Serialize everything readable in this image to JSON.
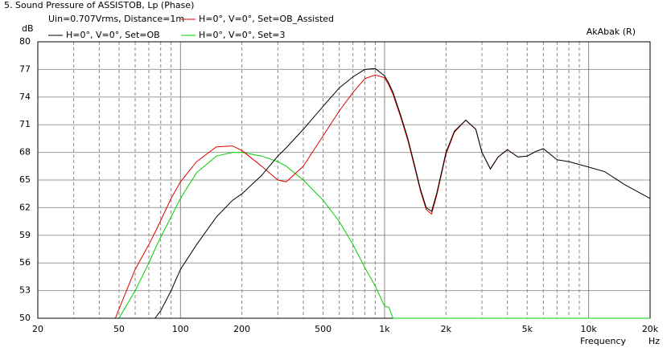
{
  "chart_data": {
    "type": "line",
    "title": "5. Sound Pressure of ASSISTOB, Lp (Phase)",
    "subtitle": "Uin=0.707Vrms, Distance=1m",
    "watermark": "AkAbak (R)",
    "y_label": "dB",
    "x_label": "Frequency",
    "x_unit": "Hz",
    "x_log": true,
    "grid": true,
    "x": [
      20,
      48,
      50,
      60,
      70,
      75,
      80,
      90,
      100,
      120,
      150,
      180,
      200,
      250,
      300,
      330,
      400,
      500,
      600,
      700,
      800,
      900,
      1000,
      1050,
      1100,
      1200,
      1300,
      1400,
      1500,
      1600,
      1700,
      1800,
      2000,
      2200,
      2500,
      2800,
      3000,
      3300,
      3600,
      4000,
      4500,
      5000,
      5500,
      6000,
      7000,
      8000,
      10000,
      12000,
      15000,
      20000
    ],
    "series": [
      {
        "name": "H=0°, V=0°, Set=OB",
        "color": "#000000",
        "values": [
          50,
          50,
          50,
          50,
          50,
          50,
          50.8,
          53,
          55.3,
          58,
          61,
          62.8,
          63.5,
          65.5,
          67.6,
          68.5,
          70.5,
          73,
          75,
          76.2,
          77,
          77.1,
          76.3,
          75.5,
          74.5,
          72,
          69.5,
          66.7,
          64,
          62,
          61.6,
          63.5,
          68,
          70.3,
          71.5,
          70.5,
          68,
          66.2,
          67.5,
          68.3,
          67.5,
          67.6,
          68.1,
          68.4,
          67.2,
          67,
          66.4,
          65.9,
          64.5,
          63
        ]
      },
      {
        "name": "H=0°, V=0°, Set=OB_Assisted",
        "color": "#e00000",
        "values": [
          50,
          50,
          51,
          55.3,
          58,
          59.3,
          60.6,
          63,
          64.8,
          67,
          68.6,
          68.7,
          68.2,
          66.5,
          65,
          64.8,
          66.5,
          69.8,
          72.5,
          74.5,
          76,
          76.4,
          76.1,
          75.3,
          74.3,
          71.8,
          69.3,
          66.5,
          63.8,
          61.8,
          61.3,
          63.3,
          67.8,
          70.2,
          71.5,
          70.5,
          68,
          66.2,
          67.5,
          68.3,
          null,
          null,
          null,
          null,
          null,
          null,
          null,
          null,
          null,
          null
        ]
      },
      {
        "name": "H=0°, V=0°, Set=3",
        "color": "#00d000",
        "values": [
          null,
          null,
          50,
          53,
          56,
          57.5,
          58.8,
          61,
          63,
          65.8,
          67.6,
          68,
          68,
          67.6,
          67,
          66.5,
          65,
          62.8,
          60.5,
          58,
          55.5,
          53.5,
          51.3,
          51.2,
          50,
          50,
          50,
          50,
          50,
          50,
          50,
          50,
          50,
          50,
          50,
          50,
          50,
          50,
          50,
          50,
          50,
          50,
          50,
          50,
          50,
          50,
          50,
          50,
          50,
          50
        ]
      }
    ],
    "xlim": [
      20,
      20000
    ],
    "ylim": [
      50,
      80
    ],
    "xticks": [
      20,
      50,
      100,
      200,
      500,
      {
        "value": 1000,
        "label": "1k"
      },
      {
        "value": 2000,
        "label": "2k"
      },
      {
        "value": 5000,
        "label": "5k"
      },
      {
        "value": 10000,
        "label": "10k"
      },
      {
        "value": 20000,
        "label": "20k"
      }
    ],
    "xgrid": [
      30,
      40,
      60,
      70,
      80,
      90,
      300,
      400,
      600,
      700,
      800,
      900,
      3000,
      4000,
      6000,
      7000,
      8000,
      9000
    ],
    "yticks": [
      50,
      53,
      56,
      59,
      62,
      65,
      68,
      71,
      74,
      77,
      80
    ]
  }
}
